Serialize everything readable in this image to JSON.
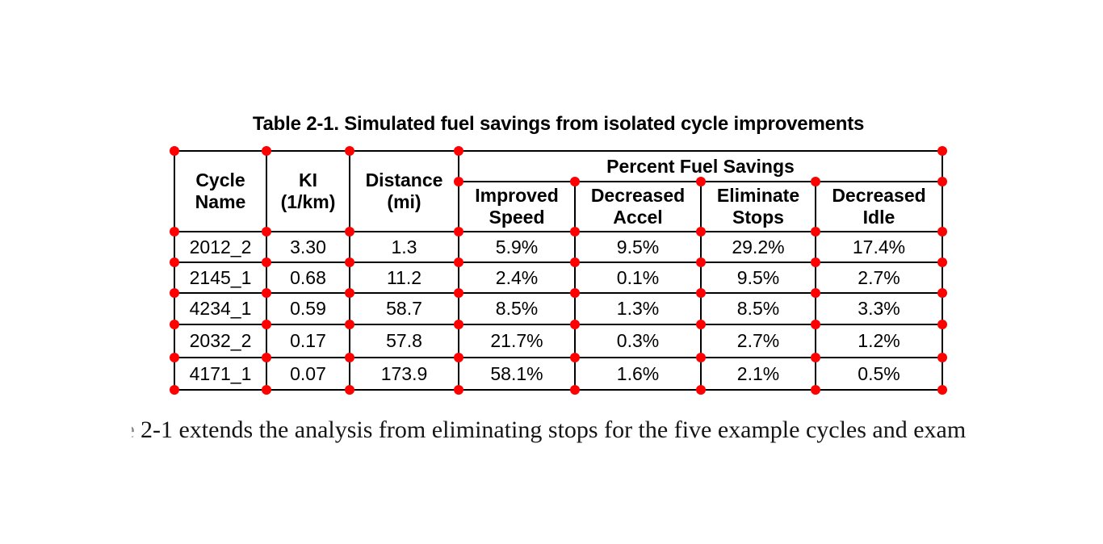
{
  "colors": {
    "background": "#ffffff",
    "grid_line": "#000000",
    "text": "#000000",
    "dot": "#ff0000"
  },
  "caption": "Table 2-1. Simulated fuel savings from isolated cycle improvements",
  "table": {
    "group_header": "Percent Fuel Savings",
    "col_headers": [
      "Cycle\nName",
      "KI\n(1/km)",
      "Distance\n(mi)",
      "Improved\nSpeed",
      "Decreased\nAccel",
      "Eliminate\nStops",
      "Decreased\nIdle"
    ],
    "rows": [
      [
        "2012_2",
        "3.30",
        "1.3",
        "5.9%",
        "9.5%",
        "29.2%",
        "17.4%"
      ],
      [
        "2145_1",
        "0.68",
        "11.2",
        "2.4%",
        "0.1%",
        "9.5%",
        "2.7%"
      ],
      [
        "4234_1",
        "0.59",
        "58.7",
        "8.5%",
        "1.3%",
        "8.5%",
        "3.3%"
      ],
      [
        "2032_2",
        "0.17",
        "57.8",
        "21.7%",
        "0.3%",
        "2.7%",
        "1.2%"
      ],
      [
        "4171_1",
        "0.07",
        "173.9",
        "58.1%",
        "1.6%",
        "2.1%",
        "0.5%"
      ]
    ]
  },
  "annotations": {
    "dot_meaning": "cell-corner markers",
    "dot_color": "#ff0000"
  },
  "paragraph": {
    "clipped_fragment": "e",
    "text": "2-1 extends the analysis from eliminating stops for the five example cycles and exam"
  }
}
